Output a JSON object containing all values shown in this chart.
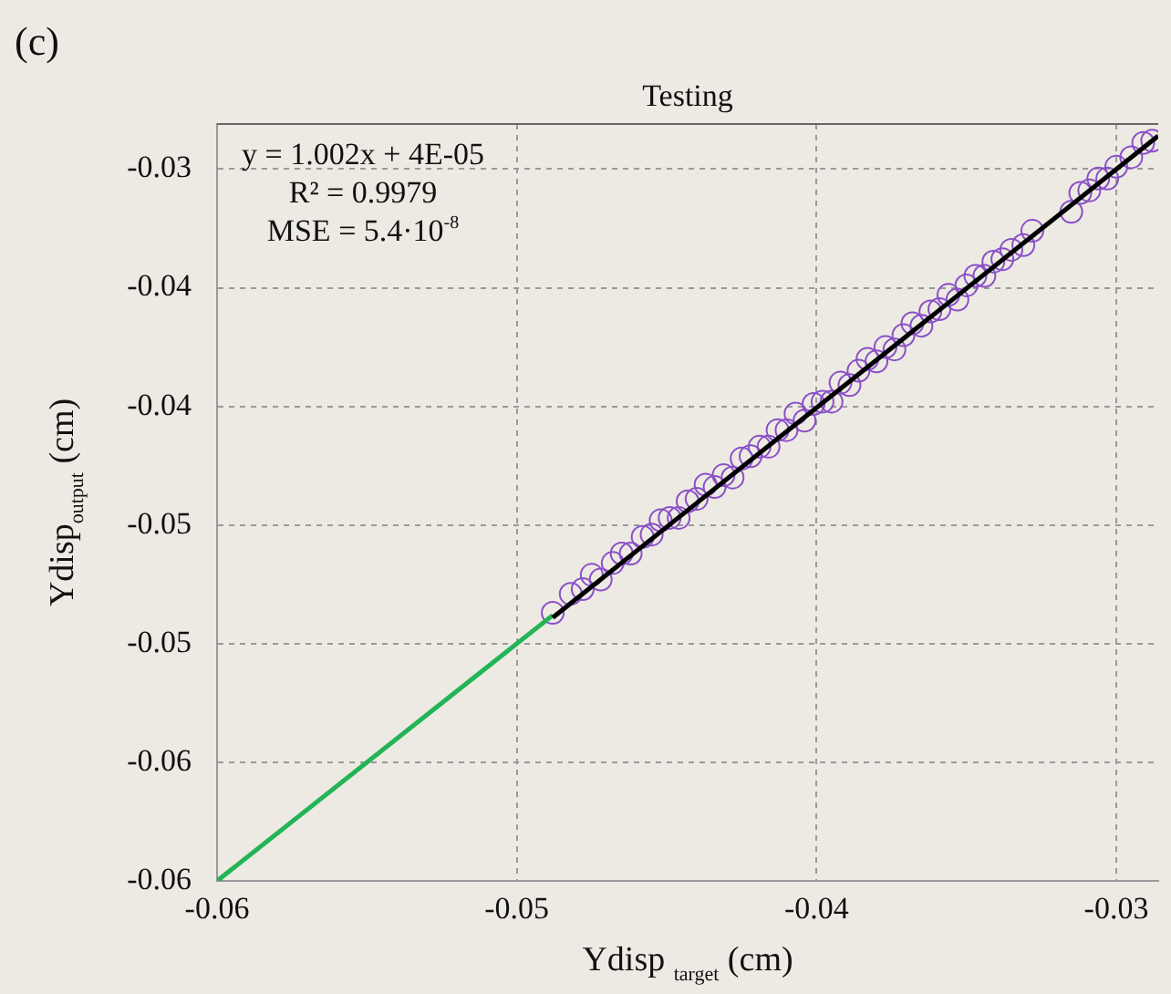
{
  "chart_data": {
    "type": "scatter",
    "title": "Testing",
    "xlabel": "Ydisp $_{target}$ (cm)",
    "ylabel": "Ydisp$_{output}$ (cm)",
    "annotations": [
      "(c)",
      "y = 1.002x + 4E-05",
      "R² = 0.9979",
      "MSE = 5.4·10$^{-8}$"
    ],
    "xlim": [
      -0.06,
      -0.0286
    ],
    "ylim": [
      -0.06,
      -0.0281
    ],
    "xticks": [
      -0.06,
      -0.05,
      -0.04,
      -0.03
    ],
    "yticks": [
      -0.06,
      {
        "value": -0.055,
        "label": "-0.06"
      },
      -0.05,
      {
        "value": -0.045,
        "label": "-0.05"
      },
      -0.04,
      {
        "value": -0.035,
        "label": "-0.04"
      },
      -0.03
    ],
    "grid": true,
    "legend": false,
    "series": [
      {
        "color": "#8a50c8",
        "marker": "circle",
        "x": [
          -0.0488,
          -0.0482,
          -0.0478,
          -0.0475,
          -0.0472,
          -0.0468,
          -0.0465,
          -0.0462,
          -0.0458,
          -0.0455,
          -0.0452,
          -0.0449,
          -0.0446,
          -0.0443,
          -0.044,
          -0.0437,
          -0.0434,
          -0.0431,
          -0.0428,
          -0.0425,
          -0.0422,
          -0.0419,
          -0.0416,
          -0.0413,
          -0.041,
          -0.0407,
          -0.0404,
          -0.0401,
          -0.0398,
          -0.0395,
          -0.0392,
          -0.0389,
          -0.0386,
          -0.0383,
          -0.038,
          -0.0377,
          -0.0374,
          -0.0371,
          -0.0368,
          -0.0365,
          -0.0362,
          -0.0359,
          -0.0356,
          -0.0353,
          -0.035,
          -0.0347,
          -0.0344,
          -0.0341,
          -0.0338,
          -0.0335,
          -0.0331,
          -0.0328,
          -0.0315,
          -0.0312,
          -0.0309,
          -0.0306,
          -0.0303,
          -0.03,
          -0.0295,
          -0.0291,
          -0.0288
        ],
        "values": [
          -0.0487,
          -0.0479,
          -0.0477,
          -0.0471,
          -0.0473,
          -0.0466,
          -0.0462,
          -0.0462,
          -0.0455,
          -0.0454,
          -0.0448,
          -0.0447,
          -0.0447,
          -0.044,
          -0.0439,
          -0.0433,
          -0.0434,
          -0.0429,
          -0.043,
          -0.0422,
          -0.0421,
          -0.0417,
          -0.0417,
          -0.041,
          -0.041,
          -0.0403,
          -0.0406,
          -0.0399,
          -0.0398,
          -0.0398,
          -0.039,
          -0.0391,
          -0.0385,
          -0.038,
          -0.0381,
          -0.0375,
          -0.0376,
          -0.037,
          -0.0365,
          -0.0366,
          -0.036,
          -0.0359,
          -0.0353,
          -0.0355,
          -0.0349,
          -0.0345,
          -0.0345,
          -0.0339,
          -0.0338,
          -0.0334,
          -0.0332,
          -0.0326,
          -0.0318,
          -0.031,
          -0.0309,
          -0.0304,
          -0.0304,
          -0.0299,
          -0.0295,
          -0.0289,
          -0.0288
        ]
      },
      {
        "type": "line",
        "color": "#22b455",
        "marker": "none",
        "x": [
          -0.06,
          -0.0488
        ],
        "values": [
          -0.06,
          -0.0488
        ]
      },
      {
        "type": "line",
        "color": "#000000",
        "marker": "none",
        "x": [
          -0.0488,
          -0.0286
        ],
        "values": [
          -0.0489,
          -0.0286
        ]
      }
    ]
  }
}
